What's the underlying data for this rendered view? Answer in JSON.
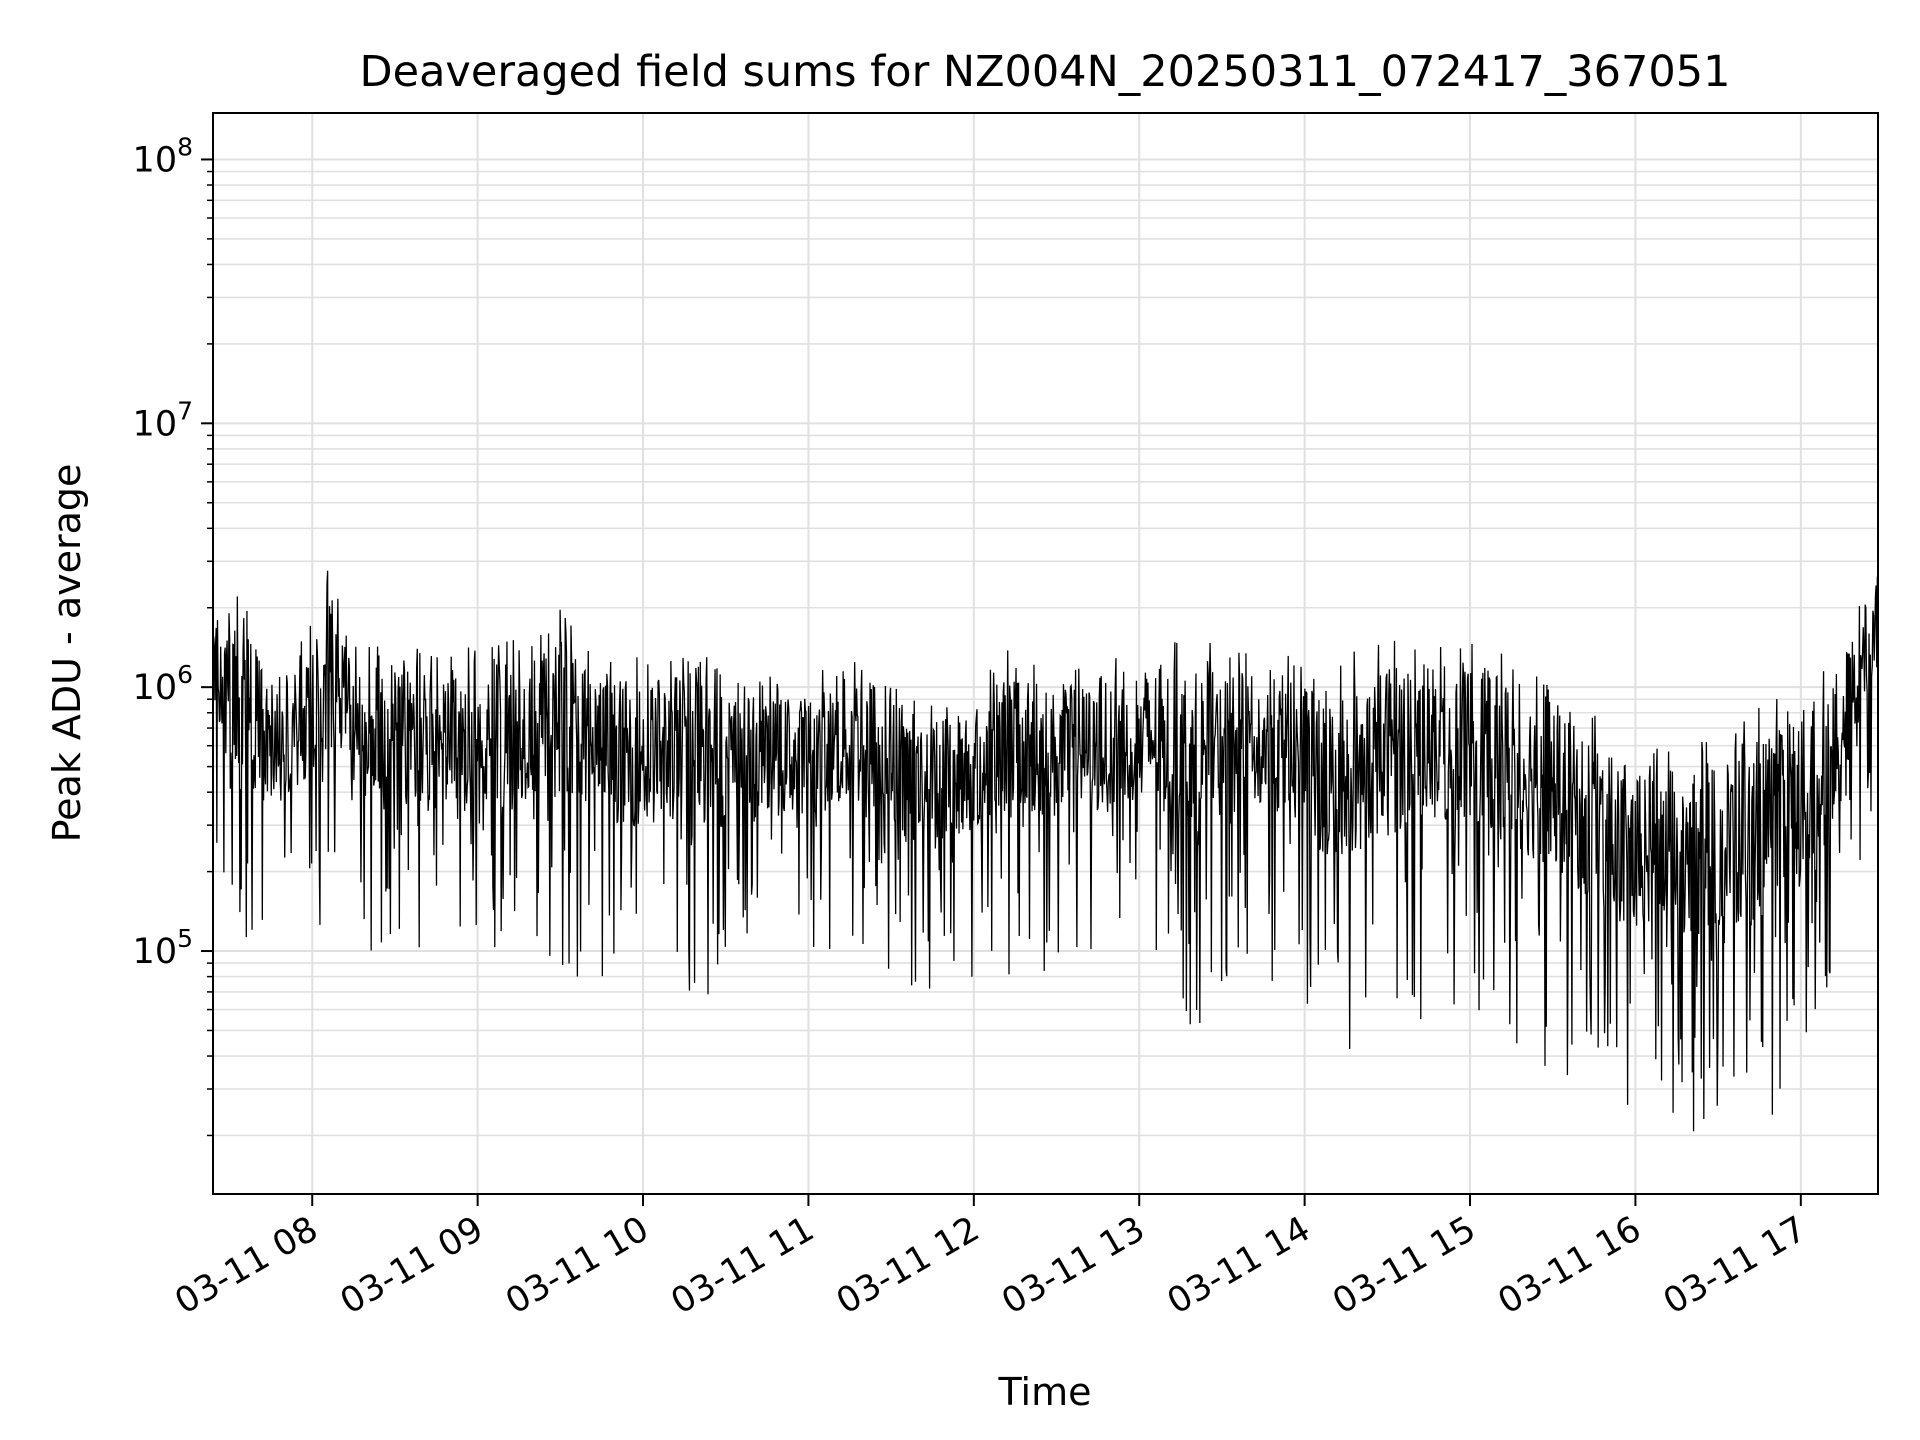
{
  "chart_data": {
    "type": "line",
    "title": "Deaveraged field sums for NZ004N_20250311_072417_367051",
    "xlabel": "Time",
    "ylabel": "Peak ADU - average",
    "yscale": "log",
    "xlim": [
      "2025-03-11 07:24",
      "2025-03-11 17:28"
    ],
    "ylim": [
      12000,
      150000000
    ],
    "grid": true,
    "line_color": "#000000",
    "grid_color": "#e0e0e0",
    "x_ticks": [
      {
        "value": "2025-03-11 08:00",
        "label": "03-11 08"
      },
      {
        "value": "2025-03-11 09:00",
        "label": "03-11 09"
      },
      {
        "value": "2025-03-11 10:00",
        "label": "03-11 10"
      },
      {
        "value": "2025-03-11 11:00",
        "label": "03-11 11"
      },
      {
        "value": "2025-03-11 12:00",
        "label": "03-11 12"
      },
      {
        "value": "2025-03-11 13:00",
        "label": "03-11 13"
      },
      {
        "value": "2025-03-11 14:00",
        "label": "03-11 14"
      },
      {
        "value": "2025-03-11 15:00",
        "label": "03-11 15"
      },
      {
        "value": "2025-03-11 16:00",
        "label": "03-11 16"
      },
      {
        "value": "2025-03-11 17:00",
        "label": "03-11 17"
      }
    ],
    "y_ticks": [
      {
        "value": 100000,
        "base": "10",
        "exp": "5"
      },
      {
        "value": 1000000,
        "base": "10",
        "exp": "6"
      },
      {
        "value": 10000000,
        "base": "10",
        "exp": "7"
      },
      {
        "value": 100000000,
        "base": "10",
        "exp": "8"
      }
    ],
    "series": [
      {
        "envelope": [
          {
            "x": "2025-03-11 07:24",
            "low": 300000,
            "high": 1800000
          },
          {
            "x": "2025-03-11 07:35",
            "low": 85000,
            "high": 2500000
          },
          {
            "x": "2025-03-11 07:45",
            "low": 90000,
            "high": 1200000
          },
          {
            "x": "2025-03-11 08:00",
            "low": 100000,
            "high": 1800000
          },
          {
            "x": "2025-03-11 08:06",
            "low": 120000,
            "high": 3000000
          },
          {
            "x": "2025-03-11 08:15",
            "low": 110000,
            "high": 1600000
          },
          {
            "x": "2025-03-11 08:30",
            "low": 80000,
            "high": 1500000
          },
          {
            "x": "2025-03-11 08:45",
            "low": 70000,
            "high": 1400000
          },
          {
            "x": "2025-03-11 09:00",
            "low": 65000,
            "high": 1600000
          },
          {
            "x": "2025-03-11 09:15",
            "low": 90000,
            "high": 1500000
          },
          {
            "x": "2025-03-11 09:30",
            "low": 80000,
            "high": 2000000
          },
          {
            "x": "2025-03-11 09:45",
            "low": 70000,
            "high": 1400000
          },
          {
            "x": "2025-03-11 10:00",
            "low": 65000,
            "high": 1300000
          },
          {
            "x": "2025-03-11 10:15",
            "low": 60000,
            "high": 1500000
          },
          {
            "x": "2025-03-11 10:30",
            "low": 70000,
            "high": 1200000
          },
          {
            "x": "2025-03-11 10:45",
            "low": 90000,
            "high": 1100000
          },
          {
            "x": "2025-03-11 11:00",
            "low": 100000,
            "high": 1100000
          },
          {
            "x": "2025-03-11 11:20",
            "low": 80000,
            "high": 1500000
          },
          {
            "x": "2025-03-11 11:40",
            "low": 70000,
            "high": 900000
          },
          {
            "x": "2025-03-11 12:00",
            "low": 70000,
            "high": 1100000
          },
          {
            "x": "2025-03-11 12:15",
            "low": 80000,
            "high": 1500000
          },
          {
            "x": "2025-03-11 12:30",
            "low": 75000,
            "high": 1200000
          },
          {
            "x": "2025-03-11 12:45",
            "low": 80000,
            "high": 1300000
          },
          {
            "x": "2025-03-11 13:00",
            "low": 90000,
            "high": 1500000
          },
          {
            "x": "2025-03-11 13:20",
            "low": 50000,
            "high": 1500000
          },
          {
            "x": "2025-03-11 13:40",
            "low": 90000,
            "high": 1400000
          },
          {
            "x": "2025-03-11 14:00",
            "low": 60000,
            "high": 1300000
          },
          {
            "x": "2025-03-11 14:05",
            "low": 35000,
            "high": 1200000
          },
          {
            "x": "2025-03-11 14:20",
            "low": 40000,
            "high": 1400000
          },
          {
            "x": "2025-03-11 14:40",
            "low": 50000,
            "high": 1800000
          },
          {
            "x": "2025-03-11 15:00",
            "low": 60000,
            "high": 1600000
          },
          {
            "x": "2025-03-11 15:20",
            "low": 40000,
            "high": 1300000
          },
          {
            "x": "2025-03-11 15:40",
            "low": 30000,
            "high": 900000
          },
          {
            "x": "2025-03-11 16:00",
            "low": 22000,
            "high": 600000
          },
          {
            "x": "2025-03-11 16:20",
            "low": 20000,
            "high": 600000
          },
          {
            "x": "2025-03-11 16:40",
            "low": 18000,
            "high": 800000
          },
          {
            "x": "2025-03-11 17:00",
            "low": 25000,
            "high": 1000000
          },
          {
            "x": "2025-03-11 17:10",
            "low": 60000,
            "high": 1200000
          },
          {
            "x": "2025-03-11 17:20",
            "low": 200000,
            "high": 2000000
          },
          {
            "x": "2025-03-11 17:28",
            "low": 300000,
            "high": 3500000
          }
        ]
      }
    ]
  }
}
